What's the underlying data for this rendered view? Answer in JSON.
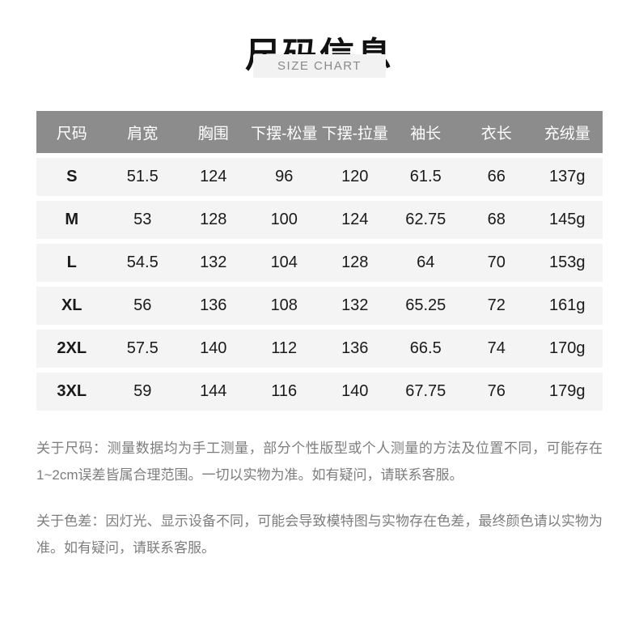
{
  "header": {
    "title": "尺码信息",
    "subtitle": "SIZE CHART"
  },
  "table": {
    "headers": [
      "尺码",
      "肩宽",
      "胸围",
      "下摆-松量",
      "下摆-拉量",
      "袖长",
      "衣长",
      "充绒量"
    ],
    "rows": [
      {
        "size": "S",
        "values": [
          "51.5",
          "124",
          "96",
          "120",
          "61.5",
          "66",
          "137g"
        ]
      },
      {
        "size": "M",
        "values": [
          "53",
          "128",
          "100",
          "124",
          "62.75",
          "68",
          "145g"
        ]
      },
      {
        "size": "L",
        "values": [
          "54.5",
          "132",
          "104",
          "128",
          "64",
          "70",
          "153g"
        ]
      },
      {
        "size": "XL",
        "values": [
          "56",
          "136",
          "108",
          "132",
          "65.25",
          "72",
          "161g"
        ]
      },
      {
        "size": "2XL",
        "values": [
          "57.5",
          "140",
          "112",
          "136",
          "66.5",
          "74",
          "170g"
        ]
      },
      {
        "size": "3XL",
        "values": [
          "59",
          "144",
          "116",
          "140",
          "67.75",
          "76",
          "179g"
        ]
      }
    ]
  },
  "notes": {
    "size_note": "关于尺码：测量数据均为手工测量，部分个性版型或个人测量的方法及位置不同，可能存在1~2cm误差皆属合理范围。一切以实物为准。如有疑问，请联系客服。",
    "color_note": "关于色差：因灯光、显示设备不同，可能会导致模特图与实物存在色差，最终颜色请以实物为准。如有疑问，请联系客服。"
  },
  "colors": {
    "header_bg": "#8c8c8c",
    "header_text": "#ffffff",
    "row_bg": "#f4f4f5",
    "cell_text": "#1a1a1a",
    "badge_bg": "#f2f2f2",
    "badge_text": "#8a8a8a",
    "title_text": "#111111",
    "note_text": "#7d7d7d"
  },
  "chart_data": {
    "type": "table",
    "title": "尺码信息",
    "subtitle": "SIZE CHART",
    "columns": [
      "尺码",
      "肩宽",
      "胸围",
      "下摆-松量",
      "下摆-拉量",
      "袖长",
      "衣长",
      "充绒量"
    ],
    "rows": [
      [
        "S",
        "51.5",
        "124",
        "96",
        "120",
        "61.5",
        "66",
        "137g"
      ],
      [
        "M",
        "53",
        "128",
        "100",
        "124",
        "62.75",
        "68",
        "145g"
      ],
      [
        "L",
        "54.5",
        "132",
        "104",
        "128",
        "64",
        "70",
        "153g"
      ],
      [
        "XL",
        "56",
        "136",
        "108",
        "132",
        "65.25",
        "72",
        "161g"
      ],
      [
        "2XL",
        "57.5",
        "140",
        "112",
        "136",
        "66.5",
        "74",
        "170g"
      ],
      [
        "3XL",
        "59",
        "144",
        "116",
        "140",
        "67.75",
        "76",
        "179g"
      ]
    ],
    "footnotes": [
      "关于尺码：测量数据均为手工测量，部分个性版型或个人测量的方法及位置不同，可能存在1~2cm误差皆属合理范围。一切以实物为准。如有疑问，请联系客服。",
      "关于色差：因灯光、显示设备不同，可能会导致模特图与实物存在色差，最终颜色请以实物为准。如有疑问，请联系客服。"
    ]
  }
}
